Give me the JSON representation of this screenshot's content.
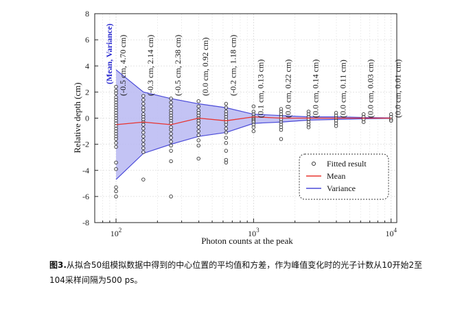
{
  "chart_data": {
    "type": "scatter",
    "xlabel": "Photon counts at the peak",
    "ylabel": "Relative depth (cm)",
    "xscale": "log",
    "xlim": [
      70,
      11000
    ],
    "ylim": [
      -8,
      8
    ],
    "yticks": [
      8,
      6,
      4,
      2,
      0,
      -2,
      -4,
      -6,
      -8
    ],
    "xticks": [
      {
        "base": "10",
        "exp": "2",
        "value": 100
      },
      {
        "base": "10",
        "exp": "3",
        "value": 1000
      },
      {
        "base": "10",
        "exp": "4",
        "value": 10000
      }
    ],
    "header_annotation": "(Mean, Variance)",
    "annotations": [
      {
        "x": 100,
        "text": "(-0.5 cm, 4.70 cm)"
      },
      {
        "x": 158,
        "text": "(-0.3 cm, 2.14 cm)"
      },
      {
        "x": 251,
        "text": "(-0.5 cm, 2.38 cm)"
      },
      {
        "x": 398,
        "text": "(0.0 cm, 0.92 cm)"
      },
      {
        "x": 631,
        "text": "(-0.2 cm, 1.18 cm)"
      },
      {
        "x": 1000,
        "text": "(0.1 cm, 0.13 cm)"
      },
      {
        "x": 1585,
        "text": "(0.0 cm, 0.22 cm)"
      },
      {
        "x": 2512,
        "text": "(0.0 cm, 0.14 cm)"
      },
      {
        "x": 3981,
        "text": "(0.0 cm, 0.11 cm)"
      },
      {
        "x": 6310,
        "text": "(0.0 cm, 0.03 cm)"
      },
      {
        "x": 10000,
        "text": "(0.0 cm, 0.01 cm)"
      }
    ],
    "series": [
      {
        "name": "Fitted result",
        "kind": "points",
        "color": "#333333",
        "groups": [
          {
            "x": 100,
            "y": [
              2.4,
              2.1,
              1.9,
              1.6,
              1.4,
              1.2,
              1.0,
              0.8,
              0.6,
              0.4,
              0.2,
              0.0,
              -0.2,
              -0.4,
              -0.6,
              -0.8,
              -1.0,
              -1.2,
              -1.4,
              -1.6,
              -1.9,
              -2.2,
              -3.4,
              -3.9,
              -5.3,
              -5.6,
              -6.0
            ]
          },
          {
            "x": 158,
            "y": [
              1.7,
              1.4,
              1.1,
              0.8,
              0.6,
              0.3,
              0.1,
              -0.1,
              -0.3,
              -0.5,
              -0.8,
              -1.1,
              -1.4,
              -1.7,
              -2.0,
              -2.3,
              -2.6,
              -4.7
            ]
          },
          {
            "x": 251,
            "y": [
              1.5,
              1.2,
              0.9,
              0.6,
              0.4,
              0.2,
              0.0,
              -0.2,
              -0.4,
              -0.7,
              -0.9,
              -1.2,
              -1.5,
              -1.8,
              -2.1,
              -2.5,
              -3.3,
              -6.0
            ]
          },
          {
            "x": 398,
            "y": [
              1.3,
              0.9,
              0.6,
              0.4,
              0.2,
              0.0,
              -0.2,
              -0.4,
              -0.7,
              -1.0,
              -1.3,
              -1.7,
              -2.1,
              -3.1
            ]
          },
          {
            "x": 631,
            "y": [
              1.1,
              0.8,
              0.5,
              0.3,
              0.1,
              -0.1,
              -0.3,
              -0.5,
              -0.8,
              -1.1,
              -1.5,
              -1.9,
              -2.5,
              -3.2,
              -3.4
            ]
          },
          {
            "x": 1000,
            "y": [
              0.9,
              0.5,
              0.3,
              0.1,
              0.0,
              -0.1,
              -0.2,
              -0.3,
              -0.5,
              -0.7,
              -1.0
            ]
          },
          {
            "x": 1585,
            "y": [
              0.7,
              0.5,
              0.3,
              0.1,
              -0.1,
              -0.3,
              -0.5,
              -0.7,
              -0.9,
              -1.6
            ]
          },
          {
            "x": 2512,
            "y": [
              0.5,
              0.3,
              0.1,
              -0.1,
              -0.3,
              -0.5,
              -0.7
            ]
          },
          {
            "x": 3981,
            "y": [
              0.4,
              0.2,
              0.0,
              -0.2,
              -0.4,
              -0.6
            ]
          },
          {
            "x": 6310,
            "y": [
              0.3,
              0.1,
              -0.1,
              -0.3
            ]
          },
          {
            "x": 10000,
            "y": [
              0.3,
              0.1,
              -0.1,
              -0.2
            ]
          }
        ]
      },
      {
        "name": "Mean",
        "kind": "line",
        "color": "#e8332f",
        "x": [
          100,
          158,
          251,
          398,
          631,
          1000,
          1585,
          2512,
          3981,
          6310,
          10000
        ],
        "y": [
          -0.5,
          -0.3,
          -0.5,
          0.0,
          -0.2,
          0.1,
          0.0,
          0.0,
          0.0,
          0.0,
          0.0
        ]
      },
      {
        "name": "Variance",
        "kind": "band",
        "color": "#4a4ad8",
        "fill": "#b9b9f2",
        "x": [
          100,
          158,
          251,
          398,
          631,
          1000,
          1585,
          2512,
          3981,
          6310,
          10000
        ],
        "upper": [
          3.7,
          2.0,
          1.5,
          1.1,
          0.8,
          0.3,
          0.2,
          0.1,
          0.1,
          0.05,
          0.02
        ],
        "lower": [
          -4.7,
          -2.7,
          -2.0,
          -1.4,
          -1.1,
          -0.4,
          -0.3,
          -0.15,
          -0.1,
          -0.05,
          -0.02
        ]
      }
    ],
    "legend": {
      "position": "bottom-right"
    }
  },
  "caption": {
    "figure_label": "图3.",
    "text": "从拟合50组模拟数据中得到的中心位置的平均值和方差，作为峰值变化时的光子计数从10开始2至104采样间隔为500 ps。"
  }
}
